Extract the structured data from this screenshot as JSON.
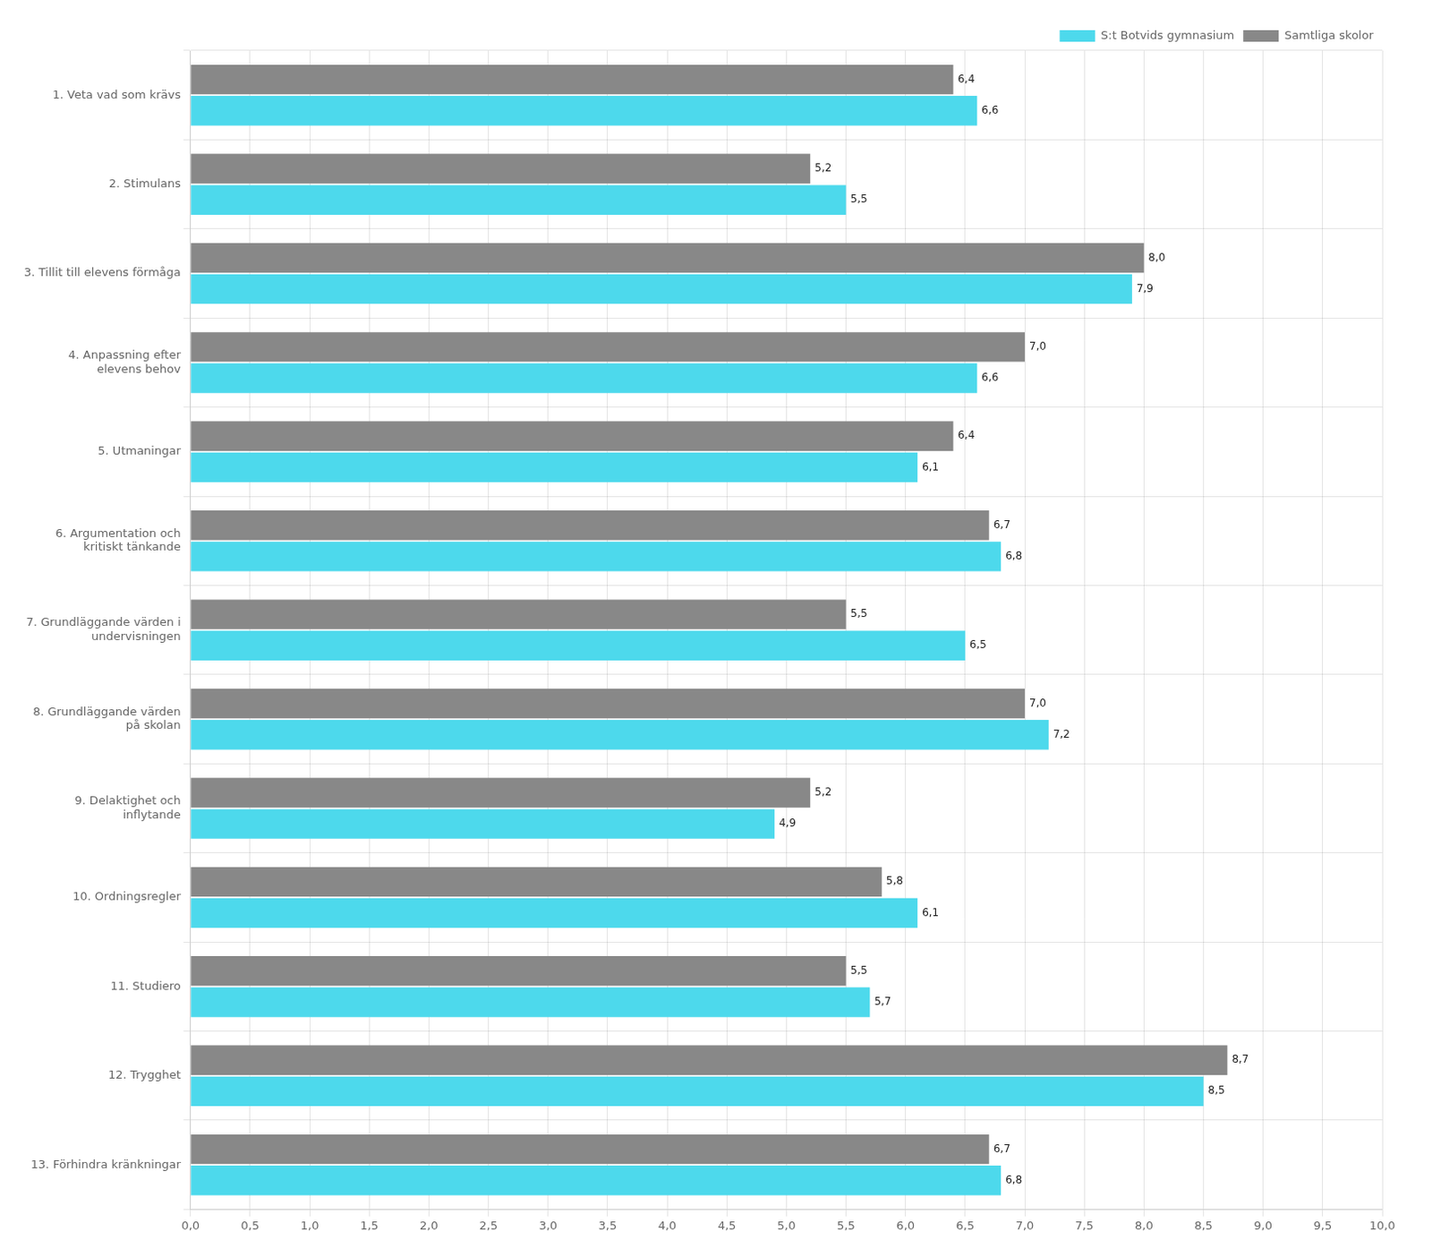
{
  "chart_data": {
    "type": "bar",
    "orientation": "horizontal",
    "categories": [
      "1. Veta vad som krävs",
      "2. Stimulans",
      "3. Tillit till elevens förmåga",
      "4. Anpassning efter\nelevens behov",
      "5. Utmaningar",
      "6. Argumentation och\nkritiskt tänkande",
      "7. Grundläggande värden i\nundervisningen",
      "8. Grundläggande värden\npå skolan",
      "9. Delaktighet och\ninflytande",
      "10. Ordningsregler",
      "11. Studiero",
      "12. Trygghet",
      "13. Förhindra kränkningar"
    ],
    "series": [
      {
        "name": "Samtliga skolor",
        "color": "#888888",
        "values": [
          6.4,
          5.2,
          8.0,
          7.0,
          6.4,
          6.7,
          5.5,
          7.0,
          5.2,
          5.8,
          5.5,
          8.7,
          6.7
        ],
        "value_labels": [
          "6,4",
          "5,2",
          "8,0",
          "7,0",
          "6,4",
          "6,7",
          "5,5",
          "7,0",
          "5,2",
          "5,8",
          "5,5",
          "8,7",
          "6,7"
        ]
      },
      {
        "name": "S:t Botvids gymnasium",
        "color": "#4DD9EC",
        "values": [
          6.6,
          5.5,
          7.9,
          6.6,
          6.1,
          6.8,
          6.5,
          7.2,
          4.9,
          6.1,
          5.7,
          8.5,
          6.8
        ],
        "value_labels": [
          "6,6",
          "5,5",
          "7,9",
          "6,6",
          "6,1",
          "6,8",
          "6,5",
          "7,2",
          "4,9",
          "6,1",
          "5,7",
          "8,5",
          "6,8"
        ]
      }
    ],
    "xlim": [
      0,
      10
    ],
    "xticks": [
      {
        "value": 0.0,
        "label": "0,0"
      },
      {
        "value": 0.5,
        "label": "0,5"
      },
      {
        "value": 1.0,
        "label": "1,0"
      },
      {
        "value": 1.5,
        "label": "1,5"
      },
      {
        "value": 2.0,
        "label": "2,0"
      },
      {
        "value": 2.5,
        "label": "2,5"
      },
      {
        "value": 3.0,
        "label": "3,0"
      },
      {
        "value": 3.5,
        "label": "3,5"
      },
      {
        "value": 4.0,
        "label": "4,0"
      },
      {
        "value": 4.5,
        "label": "4,5"
      },
      {
        "value": 5.0,
        "label": "5,0"
      },
      {
        "value": 5.5,
        "label": "5,5"
      },
      {
        "value": 6.0,
        "label": "6,0"
      },
      {
        "value": 6.5,
        "label": "6,5"
      },
      {
        "value": 7.0,
        "label": "7,0"
      },
      {
        "value": 7.5,
        "label": "7,5"
      },
      {
        "value": 8.0,
        "label": "8,0"
      },
      {
        "value": 8.5,
        "label": "8,5"
      },
      {
        "value": 9.0,
        "label": "9,0"
      },
      {
        "value": 9.5,
        "label": "9,5"
      },
      {
        "value": 10.0,
        "label": "10,0"
      }
    ],
    "grid": true,
    "legend": "top",
    "data_labels": true
  }
}
